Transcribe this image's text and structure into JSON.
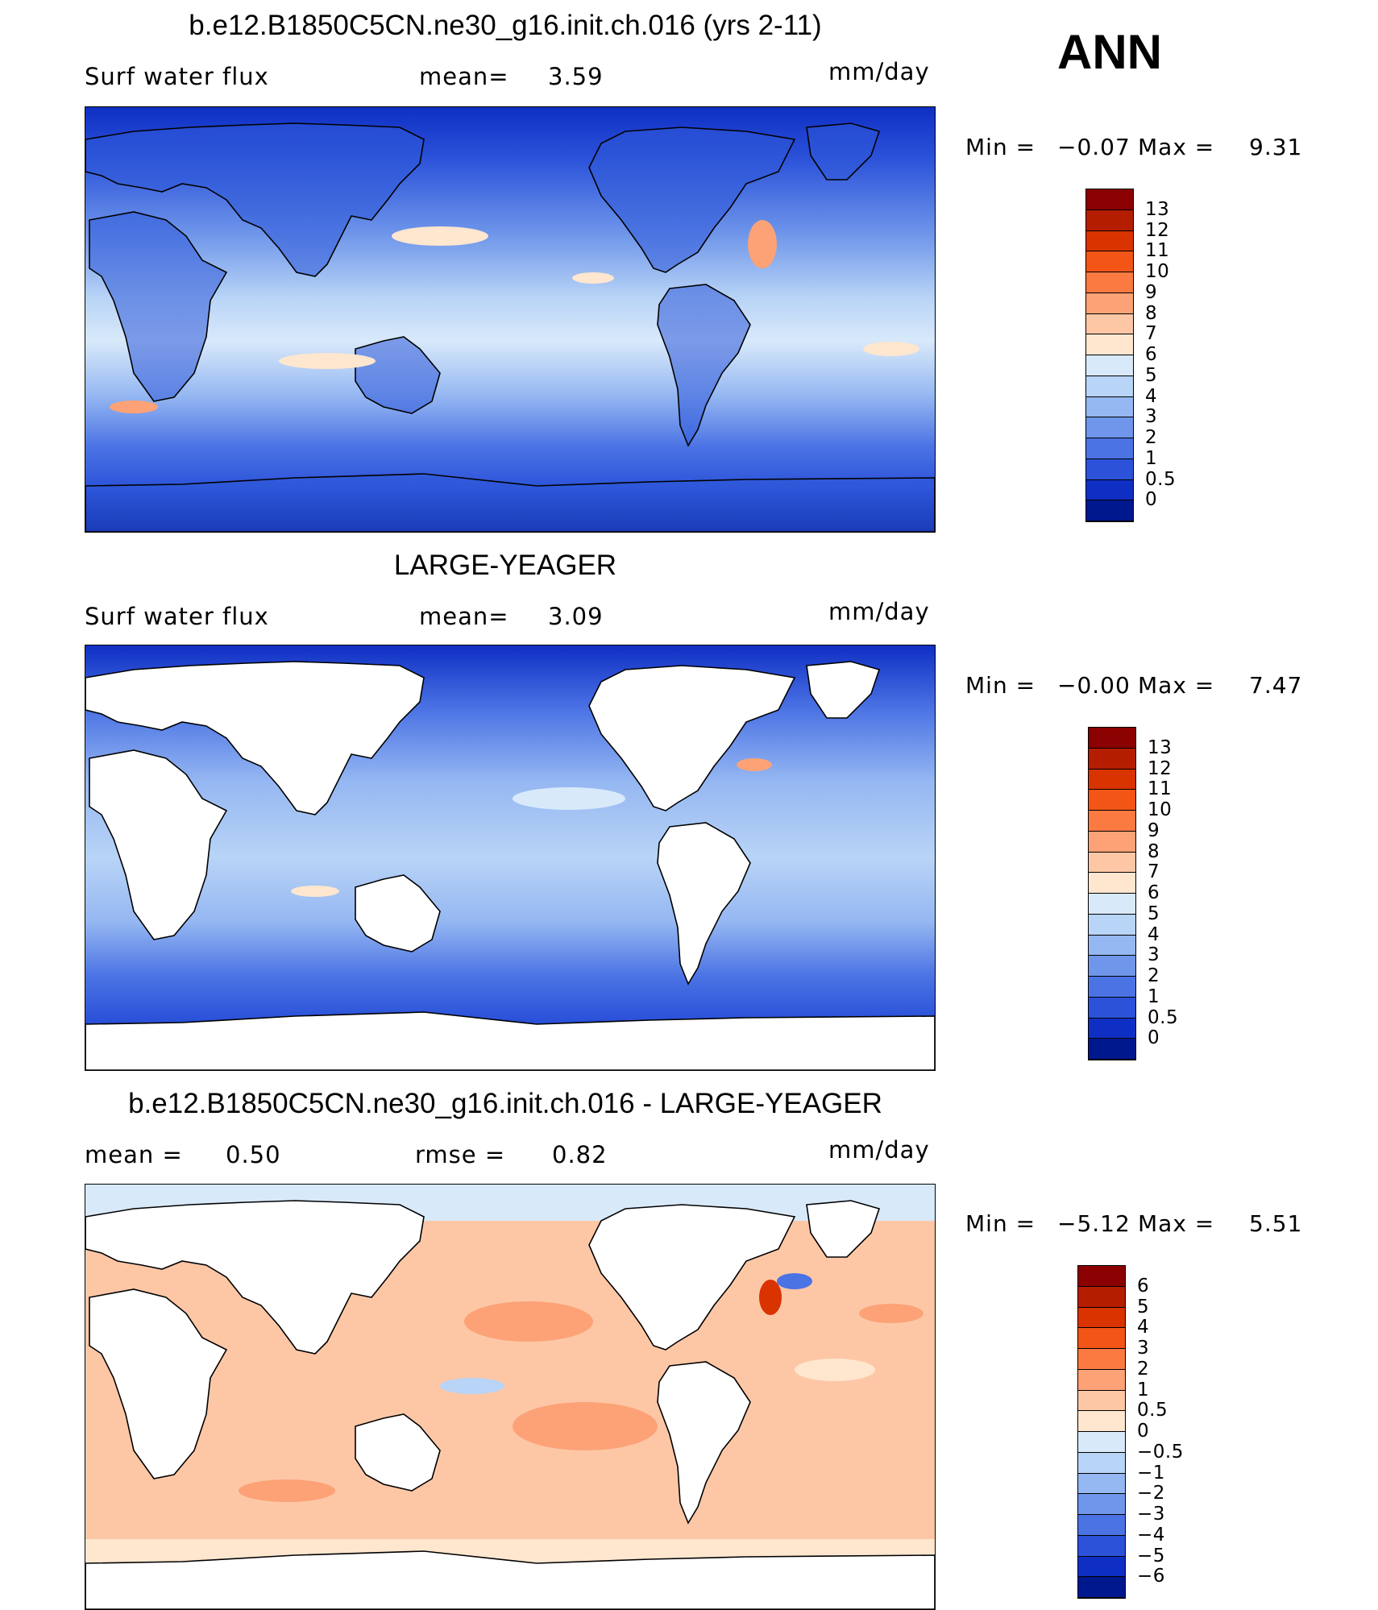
{
  "annual_tag": "ANN",
  "panels": [
    {
      "id": "model",
      "title": "b.e12.B1850C5CN.ne30_g16.init.ch.016 (yrs 2-11)",
      "variable": "Surf water flux",
      "stat1_label": "mean=",
      "stat1_value": "3.59",
      "stat2_label": "",
      "stat2_value": "",
      "units": "mm/day",
      "min_label": "Min =",
      "min_value": "−0.07",
      "max_label": "Max =",
      "max_value": "9.31",
      "land_masked": false
    },
    {
      "id": "obs",
      "title": "LARGE-YEAGER",
      "variable": "Surf water flux",
      "stat1_label": "mean=",
      "stat1_value": "3.09",
      "stat2_label": "",
      "stat2_value": "",
      "units": "mm/day",
      "min_label": "Min =",
      "min_value": "−0.00",
      "max_label": "Max =",
      "max_value": "7.47",
      "land_masked": true
    },
    {
      "id": "diff",
      "title": "b.e12.B1850C5CN.ne30_g16.init.ch.016 - LARGE-YEAGER",
      "variable": "",
      "stat1_label": "mean =",
      "stat1_value": "0.50",
      "stat2_label": "rmse =",
      "stat2_value": "0.82",
      "units": "mm/day",
      "min_label": "Min =",
      "min_value": "−5.12",
      "max_label": "Max =",
      "max_value": "5.51",
      "land_masked": true
    }
  ],
  "colorbars": {
    "absolute": {
      "labels": [
        "13",
        "12",
        "11",
        "10",
        "9",
        "8",
        "7",
        "6",
        "5",
        "4",
        "3",
        "2",
        "1",
        "0.5",
        "0"
      ],
      "colors": [
        "#8b0000",
        "#b51d00",
        "#d93300",
        "#f25516",
        "#fb7a42",
        "#fca276",
        "#fdc7a6",
        "#fee6cf",
        "#d8e9fa",
        "#b8d4f6",
        "#95b7f2",
        "#6f96ea",
        "#4b73e4",
        "#2b52d9",
        "#0f2fc4",
        "#00188e"
      ]
    },
    "difference": {
      "labels": [
        "6",
        "5",
        "4",
        "3",
        "2",
        "1",
        "0.5",
        "0",
        "−0.5",
        "−1",
        "−2",
        "−3",
        "−4",
        "−5",
        "−6"
      ],
      "colors": [
        "#8b0000",
        "#b51d00",
        "#d93300",
        "#f25516",
        "#fb7a42",
        "#fca276",
        "#fdc7a6",
        "#fee6cf",
        "#d8e9fa",
        "#b8d4f6",
        "#95b7f2",
        "#6f96ea",
        "#4b73e4",
        "#2b52d9",
        "#0f2fc4",
        "#00188e"
      ]
    }
  },
  "chart_data": [
    {
      "type": "heatmap",
      "title": "b.e12.B1850C5CN.ne30_g16.init.ch.016 (yrs 2-11)",
      "variable": "Surf water flux",
      "units": "mm/day",
      "mean": 3.59,
      "min": -0.07,
      "max": 9.31,
      "contour_levels": [
        0,
        0.5,
        1,
        2,
        3,
        4,
        5,
        6,
        7,
        8,
        9,
        10,
        11,
        12,
        13
      ]
    },
    {
      "type": "heatmap",
      "title": "LARGE-YEAGER",
      "variable": "Surf water flux",
      "units": "mm/day",
      "mean": 3.09,
      "min": -0.0,
      "max": 7.47,
      "contour_levels": [
        0,
        0.5,
        1,
        2,
        3,
        4,
        5,
        6,
        7,
        8,
        9,
        10,
        11,
        12,
        13
      ]
    },
    {
      "type": "heatmap",
      "title": "b.e12.B1850C5CN.ne30_g16.init.ch.016 - LARGE-YEAGER",
      "units": "mm/day",
      "mean": 0.5,
      "rmse": 0.82,
      "min": -5.12,
      "max": 5.51,
      "contour_levels": [
        -6,
        -5,
        -4,
        -3,
        -2,
        -1,
        -0.5,
        0,
        0.5,
        1,
        2,
        3,
        4,
        5,
        6
      ]
    }
  ]
}
